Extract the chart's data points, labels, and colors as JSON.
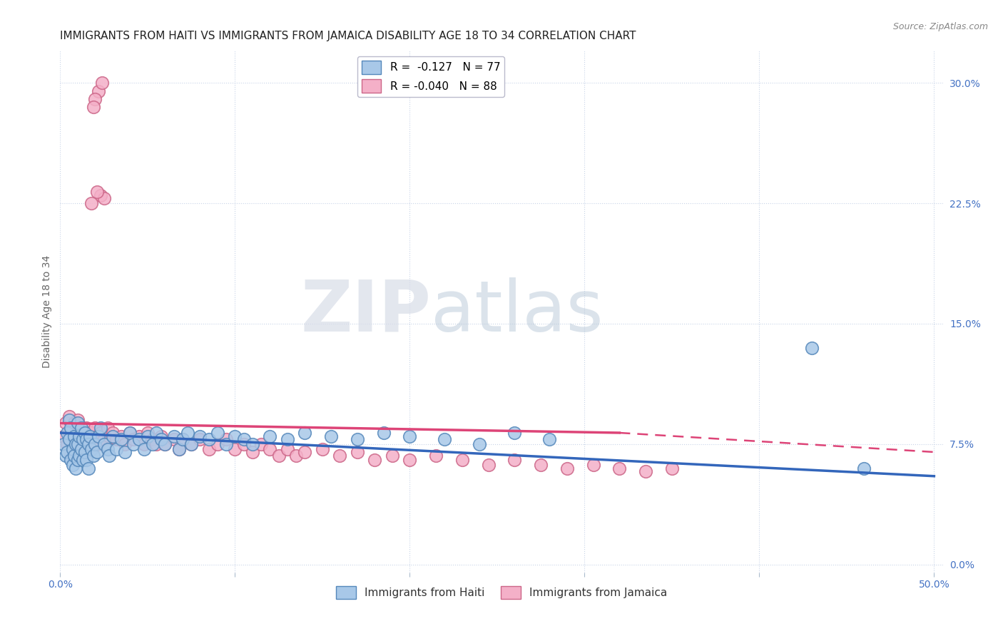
{
  "title": "IMMIGRANTS FROM HAITI VS IMMIGRANTS FROM JAMAICA DISABILITY AGE 18 TO 34 CORRELATION CHART",
  "source": "Source: ZipAtlas.com",
  "ylabel": "Disability Age 18 to 34",
  "xlim": [
    0.0,
    0.505
  ],
  "ylim": [
    -0.005,
    0.32
  ],
  "ytick_positions": [
    0.0,
    0.075,
    0.15,
    0.225,
    0.3
  ],
  "ytick_labels": [
    "0.0%",
    "7.5%",
    "15.0%",
    "22.5%",
    "30.0%"
  ],
  "haiti_color": "#a8c8e8",
  "jamaica_color": "#f4b0c8",
  "haiti_edge_color": "#5588bb",
  "jamaica_edge_color": "#cc6688",
  "haiti_line_color": "#3366bb",
  "jamaica_line_color": "#dd4477",
  "legend_haiti_label": "R =  -0.127   N = 77",
  "legend_jamaica_label": "R = -0.040   N = 88",
  "legend_haiti_fill": "#a8c8e8",
  "legend_jamaica_fill": "#f4b0c8",
  "watermark_zip": "ZIP",
  "watermark_atlas": "atlas",
  "grid_color": "#c8d4e8",
  "background_color": "#ffffff",
  "title_fontsize": 11,
  "axis_label_fontsize": 10,
  "tick_fontsize": 10,
  "tick_color": "#4472c4",
  "legend_fontsize": 11,
  "haiti_scatter_x": [
    0.002,
    0.003,
    0.004,
    0.004,
    0.005,
    0.005,
    0.006,
    0.006,
    0.007,
    0.007,
    0.008,
    0.008,
    0.009,
    0.009,
    0.01,
    0.01,
    0.01,
    0.011,
    0.011,
    0.012,
    0.012,
    0.013,
    0.013,
    0.014,
    0.014,
    0.015,
    0.015,
    0.016,
    0.016,
    0.017,
    0.018,
    0.019,
    0.02,
    0.021,
    0.022,
    0.023,
    0.025,
    0.027,
    0.028,
    0.03,
    0.032,
    0.035,
    0.037,
    0.04,
    0.042,
    0.045,
    0.048,
    0.05,
    0.053,
    0.055,
    0.058,
    0.06,
    0.065,
    0.068,
    0.07,
    0.073,
    0.075,
    0.08,
    0.085,
    0.09,
    0.095,
    0.1,
    0.105,
    0.11,
    0.12,
    0.13,
    0.14,
    0.155,
    0.17,
    0.185,
    0.2,
    0.22,
    0.24,
    0.26,
    0.28,
    0.43,
    0.46
  ],
  "haiti_scatter_y": [
    0.075,
    0.068,
    0.082,
    0.07,
    0.09,
    0.078,
    0.065,
    0.085,
    0.072,
    0.062,
    0.08,
    0.068,
    0.075,
    0.06,
    0.088,
    0.075,
    0.065,
    0.08,
    0.068,
    0.085,
    0.072,
    0.078,
    0.065,
    0.082,
    0.07,
    0.078,
    0.065,
    0.075,
    0.06,
    0.08,
    0.072,
    0.068,
    0.075,
    0.07,
    0.08,
    0.085,
    0.075,
    0.072,
    0.068,
    0.08,
    0.072,
    0.078,
    0.07,
    0.082,
    0.075,
    0.078,
    0.072,
    0.08,
    0.075,
    0.082,
    0.078,
    0.075,
    0.08,
    0.072,
    0.078,
    0.082,
    0.075,
    0.08,
    0.078,
    0.082,
    0.075,
    0.08,
    0.078,
    0.075,
    0.08,
    0.078,
    0.082,
    0.08,
    0.078,
    0.082,
    0.08,
    0.078,
    0.075,
    0.082,
    0.078,
    0.135,
    0.06
  ],
  "jamaica_scatter_x": [
    0.002,
    0.003,
    0.004,
    0.005,
    0.005,
    0.006,
    0.006,
    0.007,
    0.007,
    0.008,
    0.008,
    0.009,
    0.009,
    0.01,
    0.01,
    0.011,
    0.011,
    0.012,
    0.012,
    0.013,
    0.014,
    0.015,
    0.015,
    0.016,
    0.017,
    0.018,
    0.019,
    0.02,
    0.021,
    0.022,
    0.023,
    0.025,
    0.027,
    0.028,
    0.03,
    0.032,
    0.035,
    0.037,
    0.04,
    0.042,
    0.045,
    0.048,
    0.05,
    0.053,
    0.055,
    0.058,
    0.06,
    0.065,
    0.068,
    0.07,
    0.075,
    0.08,
    0.085,
    0.09,
    0.095,
    0.1,
    0.105,
    0.11,
    0.115,
    0.12,
    0.125,
    0.13,
    0.135,
    0.14,
    0.15,
    0.16,
    0.17,
    0.18,
    0.19,
    0.2,
    0.215,
    0.23,
    0.245,
    0.26,
    0.275,
    0.29,
    0.305,
    0.32,
    0.335,
    0.35,
    0.022,
    0.024,
    0.02,
    0.019,
    0.023,
    0.025,
    0.021,
    0.018
  ],
  "jamaica_scatter_y": [
    0.08,
    0.088,
    0.075,
    0.092,
    0.082,
    0.068,
    0.078,
    0.085,
    0.072,
    0.088,
    0.075,
    0.082,
    0.068,
    0.09,
    0.078,
    0.085,
    0.072,
    0.08,
    0.068,
    0.082,
    0.078,
    0.085,
    0.072,
    0.08,
    0.075,
    0.082,
    0.078,
    0.085,
    0.08,
    0.075,
    0.082,
    0.078,
    0.085,
    0.08,
    0.082,
    0.078,
    0.08,
    0.075,
    0.082,
    0.078,
    0.08,
    0.075,
    0.082,
    0.078,
    0.075,
    0.08,
    0.075,
    0.078,
    0.072,
    0.078,
    0.075,
    0.078,
    0.072,
    0.075,
    0.078,
    0.072,
    0.075,
    0.07,
    0.075,
    0.072,
    0.068,
    0.072,
    0.068,
    0.07,
    0.072,
    0.068,
    0.07,
    0.065,
    0.068,
    0.065,
    0.068,
    0.065,
    0.062,
    0.065,
    0.062,
    0.06,
    0.062,
    0.06,
    0.058,
    0.06,
    0.295,
    0.3,
    0.29,
    0.285,
    0.23,
    0.228,
    0.232,
    0.225
  ]
}
